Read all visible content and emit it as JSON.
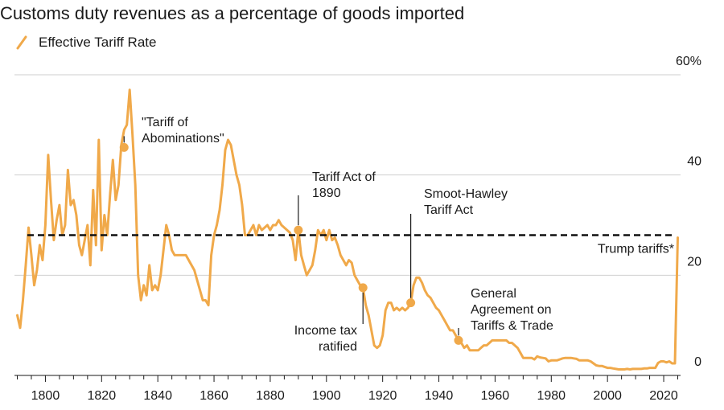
{
  "chart_data": {
    "type": "line",
    "title": "Customs duty revenues as a percentage of goods imported",
    "legend": [
      {
        "label": "Effective Tariff Rate",
        "color": "#f0a94a"
      }
    ],
    "xlabel": "",
    "ylabel": "",
    "xlim": [
      1789,
      2026
    ],
    "ylim": [
      0,
      60
    ],
    "x_ticks": [
      1800,
      1820,
      1840,
      1860,
      1880,
      1900,
      1920,
      1940,
      1960,
      1980,
      2000,
      2020
    ],
    "y_ticks": [
      {
        "value": 60,
        "label": "60%"
      },
      {
        "value": 40,
        "label": "40"
      },
      {
        "value": 20,
        "label": "20"
      },
      {
        "value": 0,
        "label": "0"
      }
    ],
    "grid": true,
    "series": [
      {
        "name": "Effective Tariff Rate",
        "color": "#f0a94a",
        "points": [
          [
            1790,
            12
          ],
          [
            1791,
            9.5
          ],
          [
            1792,
            15
          ],
          [
            1793,
            22
          ],
          [
            1794,
            29.5
          ],
          [
            1795,
            24
          ],
          [
            1796,
            18
          ],
          [
            1797,
            21
          ],
          [
            1798,
            26
          ],
          [
            1799,
            23
          ],
          [
            1800,
            30
          ],
          [
            1801,
            44
          ],
          [
            1802,
            35
          ],
          [
            1803,
            27
          ],
          [
            1804,
            31
          ],
          [
            1805,
            34
          ],
          [
            1806,
            28
          ],
          [
            1807,
            30
          ],
          [
            1808,
            41
          ],
          [
            1809,
            34
          ],
          [
            1810,
            35
          ],
          [
            1811,
            32
          ],
          [
            1812,
            26
          ],
          [
            1813,
            24
          ],
          [
            1814,
            27
          ],
          [
            1815,
            30
          ],
          [
            1816,
            22
          ],
          [
            1817,
            37
          ],
          [
            1818,
            26
          ],
          [
            1819,
            47
          ],
          [
            1820,
            25
          ],
          [
            1821,
            32
          ],
          [
            1822,
            28
          ],
          [
            1823,
            36
          ],
          [
            1824,
            43
          ],
          [
            1825,
            35
          ],
          [
            1826,
            38
          ],
          [
            1827,
            46
          ],
          [
            1828,
            49
          ],
          [
            1829,
            50
          ],
          [
            1830,
            57
          ],
          [
            1831,
            48
          ],
          [
            1832,
            38
          ],
          [
            1833,
            20
          ],
          [
            1834,
            15
          ],
          [
            1835,
            18
          ],
          [
            1836,
            16
          ],
          [
            1837,
            22
          ],
          [
            1838,
            17
          ],
          [
            1839,
            18
          ],
          [
            1840,
            17
          ],
          [
            1841,
            20
          ],
          [
            1842,
            25
          ],
          [
            1843,
            30
          ],
          [
            1844,
            28
          ],
          [
            1845,
            25
          ],
          [
            1846,
            24
          ],
          [
            1847,
            24
          ],
          [
            1848,
            24
          ],
          [
            1849,
            24
          ],
          [
            1850,
            24
          ],
          [
            1851,
            23
          ],
          [
            1852,
            22
          ],
          [
            1853,
            21
          ],
          [
            1854,
            19
          ],
          [
            1855,
            17
          ],
          [
            1856,
            15
          ],
          [
            1857,
            15
          ],
          [
            1858,
            14
          ],
          [
            1859,
            24
          ],
          [
            1860,
            28
          ],
          [
            1861,
            30
          ],
          [
            1862,
            33
          ],
          [
            1863,
            38
          ],
          [
            1864,
            45
          ],
          [
            1865,
            47
          ],
          [
            1866,
            46
          ],
          [
            1867,
            43
          ],
          [
            1868,
            40
          ],
          [
            1869,
            38
          ],
          [
            1870,
            34
          ],
          [
            1871,
            28
          ],
          [
            1872,
            28
          ],
          [
            1873,
            29
          ],
          [
            1874,
            30
          ],
          [
            1875,
            28
          ],
          [
            1876,
            30
          ],
          [
            1877,
            29
          ],
          [
            1878,
            29.5
          ],
          [
            1879,
            30
          ],
          [
            1880,
            29
          ],
          [
            1881,
            30
          ],
          [
            1882,
            30
          ],
          [
            1883,
            31
          ],
          [
            1884,
            30
          ],
          [
            1885,
            29.5
          ],
          [
            1886,
            29
          ],
          [
            1887,
            28.5
          ],
          [
            1888,
            27
          ],
          [
            1889,
            23
          ],
          [
            1890,
            29
          ],
          [
            1891,
            24
          ],
          [
            1892,
            22
          ],
          [
            1893,
            20
          ],
          [
            1894,
            21
          ],
          [
            1895,
            22
          ],
          [
            1896,
            25
          ],
          [
            1897,
            29
          ],
          [
            1898,
            28
          ],
          [
            1899,
            29
          ],
          [
            1900,
            27
          ],
          [
            1901,
            29
          ],
          [
            1902,
            27
          ],
          [
            1903,
            27.5
          ],
          [
            1904,
            26
          ],
          [
            1905,
            24
          ],
          [
            1906,
            23
          ],
          [
            1907,
            22
          ],
          [
            1908,
            23
          ],
          [
            1909,
            22.5
          ],
          [
            1910,
            20
          ],
          [
            1911,
            19
          ],
          [
            1912,
            18
          ],
          [
            1913,
            17.5
          ],
          [
            1914,
            14
          ],
          [
            1915,
            12
          ],
          [
            1916,
            9
          ],
          [
            1917,
            6
          ],
          [
            1918,
            5.5
          ],
          [
            1919,
            6
          ],
          [
            1920,
            8
          ],
          [
            1921,
            13
          ],
          [
            1922,
            14.5
          ],
          [
            1923,
            14.5
          ],
          [
            1924,
            13
          ],
          [
            1925,
            13.5
          ],
          [
            1926,
            13
          ],
          [
            1927,
            13.5
          ],
          [
            1928,
            13
          ],
          [
            1929,
            13.5
          ],
          [
            1930,
            14.5
          ],
          [
            1931,
            18
          ],
          [
            1932,
            19.5
          ],
          [
            1933,
            19.5
          ],
          [
            1934,
            18.5
          ],
          [
            1935,
            17
          ],
          [
            1936,
            16
          ],
          [
            1937,
            15.5
          ],
          [
            1938,
            14.5
          ],
          [
            1939,
            13.5
          ],
          [
            1940,
            13
          ],
          [
            1941,
            12
          ],
          [
            1942,
            11
          ],
          [
            1943,
            10
          ],
          [
            1944,
            9
          ],
          [
            1945,
            9
          ],
          [
            1946,
            8
          ],
          [
            1947,
            7
          ],
          [
            1948,
            6.5
          ],
          [
            1949,
            5.5
          ],
          [
            1950,
            6
          ],
          [
            1951,
            5
          ],
          [
            1952,
            5
          ],
          [
            1953,
            5
          ],
          [
            1954,
            5
          ],
          [
            1955,
            5.5
          ],
          [
            1956,
            6
          ],
          [
            1957,
            6
          ],
          [
            1958,
            6.5
          ],
          [
            1959,
            7
          ],
          [
            1960,
            7
          ],
          [
            1961,
            7
          ],
          [
            1962,
            7
          ],
          [
            1963,
            7
          ],
          [
            1964,
            7
          ],
          [
            1965,
            6.5
          ],
          [
            1966,
            6.5
          ],
          [
            1967,
            6
          ],
          [
            1968,
            5.5
          ],
          [
            1969,
            4.5
          ],
          [
            1970,
            3.5
          ],
          [
            1971,
            3.5
          ],
          [
            1972,
            3.5
          ],
          [
            1973,
            3.5
          ],
          [
            1974,
            3.2
          ],
          [
            1975,
            3.8
          ],
          [
            1976,
            3.6
          ],
          [
            1977,
            3.5
          ],
          [
            1978,
            3.4
          ],
          [
            1979,
            2.8
          ],
          [
            1980,
            3
          ],
          [
            1981,
            3
          ],
          [
            1982,
            3
          ],
          [
            1983,
            3.2
          ],
          [
            1984,
            3.4
          ],
          [
            1985,
            3.5
          ],
          [
            1986,
            3.5
          ],
          [
            1987,
            3.5
          ],
          [
            1988,
            3.4
          ],
          [
            1989,
            3.3
          ],
          [
            1990,
            3
          ],
          [
            1991,
            3
          ],
          [
            1992,
            3
          ],
          [
            1993,
            3
          ],
          [
            1994,
            2.8
          ],
          [
            1995,
            2.4
          ],
          [
            1996,
            2
          ],
          [
            1997,
            1.9
          ],
          [
            1998,
            1.9
          ],
          [
            1999,
            1.7
          ],
          [
            2000,
            1.5
          ],
          [
            2001,
            1.5
          ],
          [
            2002,
            1.4
          ],
          [
            2003,
            1.3
          ],
          [
            2004,
            1.2
          ],
          [
            2005,
            1.2
          ],
          [
            2006,
            1.2
          ],
          [
            2007,
            1.3
          ],
          [
            2008,
            1.2
          ],
          [
            2009,
            1.3
          ],
          [
            2010,
            1.3
          ],
          [
            2011,
            1.3
          ],
          [
            2012,
            1.3
          ],
          [
            2013,
            1.4
          ],
          [
            2014,
            1.4
          ],
          [
            2015,
            1.5
          ],
          [
            2016,
            1.5
          ],
          [
            2017,
            1.5
          ],
          [
            2018,
            2.5
          ],
          [
            2019,
            2.8
          ],
          [
            2020,
            2.8
          ],
          [
            2021,
            2.6
          ],
          [
            2022,
            2.8
          ],
          [
            2023,
            2.4
          ],
          [
            2024,
            2.4
          ],
          [
            2025,
            27.5
          ]
        ]
      }
    ],
    "reference_line": {
      "label": "Trump tariffs*",
      "value": 28
    },
    "annotations": [
      {
        "lines": [
          "\"Tariff of",
          "Abominations\""
        ],
        "x": 1828,
        "y": 45.5
      },
      {
        "lines": [
          "Tariff Act of",
          "1890"
        ],
        "x": 1890,
        "y": 29
      },
      {
        "lines": [
          "Smoot-Hawley",
          "Tariff Act"
        ],
        "x": 1930,
        "y": 14.5
      },
      {
        "lines": [
          "Income tax",
          "ratified"
        ],
        "x": 1913,
        "y": 17.5
      },
      {
        "lines": [
          "General",
          "Agreement on",
          "Tariffs & Trade"
        ],
        "x": 1947,
        "y": 7
      }
    ]
  }
}
